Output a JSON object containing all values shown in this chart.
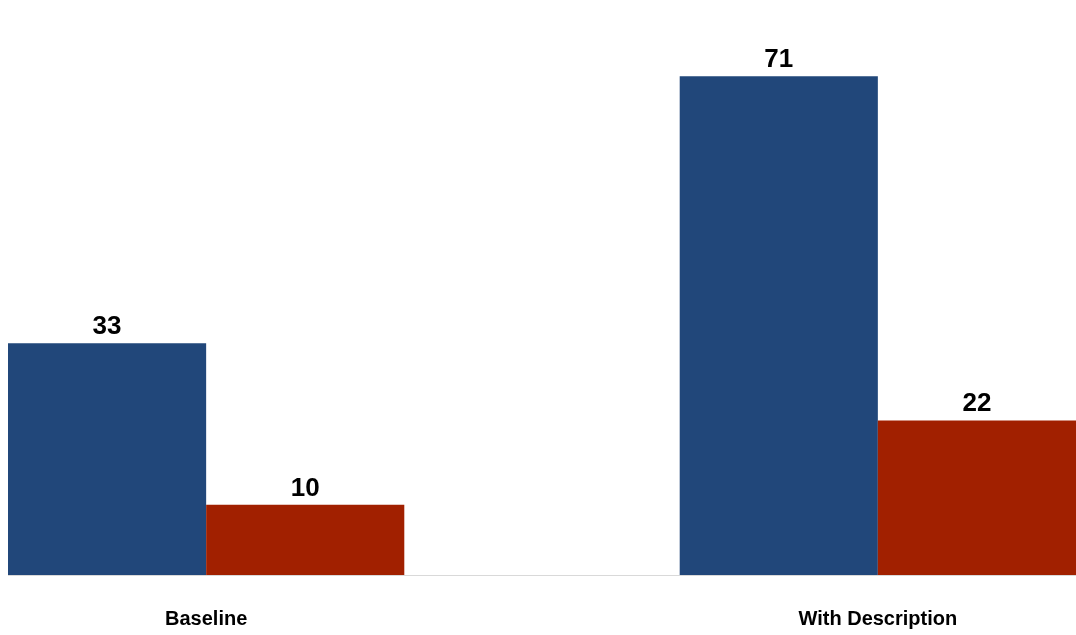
{
  "chart_data": {
    "type": "bar",
    "categories": [
      "Baseline",
      "With Description"
    ],
    "series": [
      {
        "color": "#21477a",
        "values": [
          33,
          71
        ]
      },
      {
        "color": "#a12000",
        "values": [
          10,
          22
        ]
      }
    ],
    "data_labels": true
  }
}
